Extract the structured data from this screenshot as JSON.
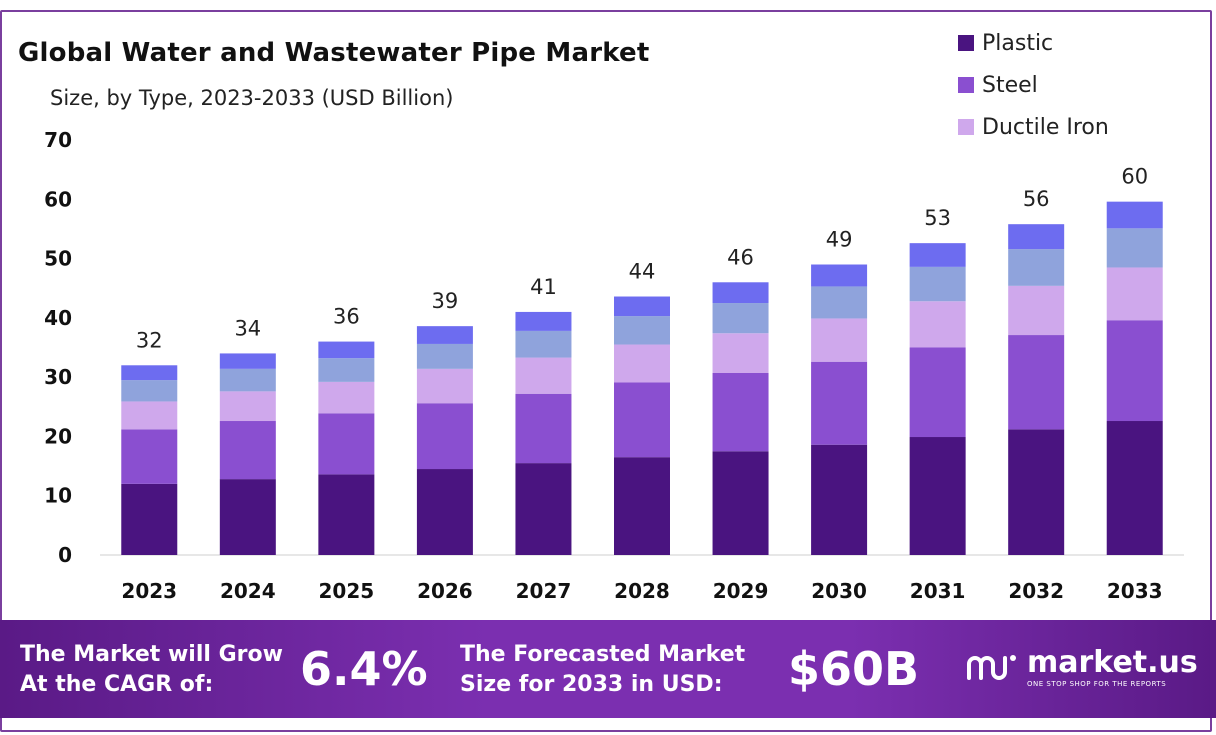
{
  "chart_data": {
    "type": "bar",
    "stacked": true,
    "title": "Global Water and Wastewater Pipe Market",
    "subtitle": "Size, by Type, 2023-2033 (USD Billion)",
    "categories": [
      "2023",
      "2024",
      "2025",
      "2026",
      "2027",
      "2028",
      "2029",
      "2030",
      "2031",
      "2032",
      "2033"
    ],
    "totals": [
      32,
      34,
      36,
      39,
      41,
      44,
      46,
      49,
      53,
      56,
      60
    ],
    "ylim": [
      0,
      70
    ],
    "yticks": [
      0,
      10,
      20,
      30,
      40,
      50,
      60,
      70
    ],
    "series": [
      {
        "name": "Plastic",
        "color": "#4a1480",
        "values": [
          12.0,
          12.8,
          13.6,
          14.5,
          15.5,
          16.5,
          17.5,
          18.6,
          19.9,
          21.2,
          22.6
        ]
      },
      {
        "name": "Steel",
        "color": "#8a4fd0",
        "values": [
          9.2,
          9.8,
          10.3,
          11.1,
          11.7,
          12.6,
          13.2,
          14.0,
          15.1,
          15.9,
          17.0
        ]
      },
      {
        "name": "Ductile Iron",
        "color": "#cfa8ec",
        "values": [
          4.7,
          5.0,
          5.3,
          5.8,
          6.1,
          6.4,
          6.7,
          7.3,
          7.8,
          8.3,
          8.9
        ]
      },
      {
        "name": "",
        "color": "#8fa3dc",
        "values": [
          3.6,
          3.8,
          4.0,
          4.2,
          4.5,
          4.8,
          5.1,
          5.4,
          5.8,
          6.2,
          6.6
        ]
      },
      {
        "name": "",
        "color": "#6d6cf0",
        "values": [
          2.5,
          2.6,
          2.8,
          3.0,
          3.2,
          3.3,
          3.5,
          3.7,
          4.0,
          4.2,
          4.5
        ]
      }
    ],
    "legend_position": "top-right"
  },
  "legend": [
    {
      "label": "Plastic",
      "color": "#4a1480"
    },
    {
      "label": "Steel",
      "color": "#8a4fd0"
    },
    {
      "label": "Ductile Iron",
      "color": "#cfa8ec"
    }
  ],
  "banner": {
    "cagr_label_1": "The Market will Grow",
    "cagr_label_2": "At the CAGR of:",
    "cagr_value": "6.4%",
    "forecast_label_1": "The Forecasted Market",
    "forecast_label_2": "Size for 2033 in USD:",
    "forecast_value": "$60B",
    "brand_name": "market.us",
    "brand_tagline": "ONE STOP SHOP FOR THE REPORTS"
  }
}
